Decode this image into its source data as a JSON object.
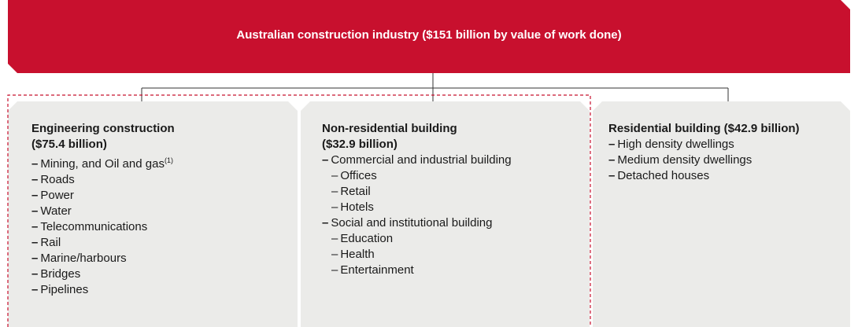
{
  "header": {
    "title": "Australian construction industry ($151 billion by value of work done)"
  },
  "columns": [
    {
      "title": [
        "Engineering construction",
        "($75.4 billion)"
      ],
      "items": [
        {
          "marker": "–",
          "text": "Mining, and Oil and gas",
          "note": "(1)",
          "level": 1
        },
        {
          "marker": "–",
          "text": "Roads",
          "level": 1
        },
        {
          "marker": "–",
          "text": "Power",
          "level": 1
        },
        {
          "marker": "–",
          "text": "Water",
          "level": 1
        },
        {
          "marker": "–",
          "text": "Telecommunications",
          "level": 1
        },
        {
          "marker": "–",
          "text": "Rail",
          "level": 1
        },
        {
          "marker": "–",
          "text": "Marine/harbours",
          "level": 1
        },
        {
          "marker": "–",
          "text": "Bridges",
          "level": 1
        },
        {
          "marker": "–",
          "text": "Pipelines",
          "level": 1
        }
      ]
    },
    {
      "title": [
        "Non-residential building",
        "($32.9 billion)"
      ],
      "items": [
        {
          "marker": "–",
          "text": "Commercial and industrial building",
          "level": 1
        },
        {
          "marker": "–",
          "text": "Offices",
          "level": 2
        },
        {
          "marker": "–",
          "text": "Retail",
          "level": 2
        },
        {
          "marker": "–",
          "text": "Hotels",
          "level": 2
        },
        {
          "marker": "–",
          "text": "Social and institutional building",
          "level": 1
        },
        {
          "marker": "–",
          "text": "Education",
          "level": 2
        },
        {
          "marker": "–",
          "text": "Health",
          "level": 2
        },
        {
          "marker": "–",
          "text": "Entertainment",
          "level": 2
        }
      ]
    },
    {
      "title": [
        "Residential building ($42.9 billion)"
      ],
      "items": [
        {
          "marker": "–",
          "text": "High density dwellings",
          "level": 1
        },
        {
          "marker": "–",
          "text": "Medium density dwellings",
          "level": 1
        },
        {
          "marker": "–",
          "text": "Detached houses",
          "level": 1
        }
      ]
    }
  ]
}
